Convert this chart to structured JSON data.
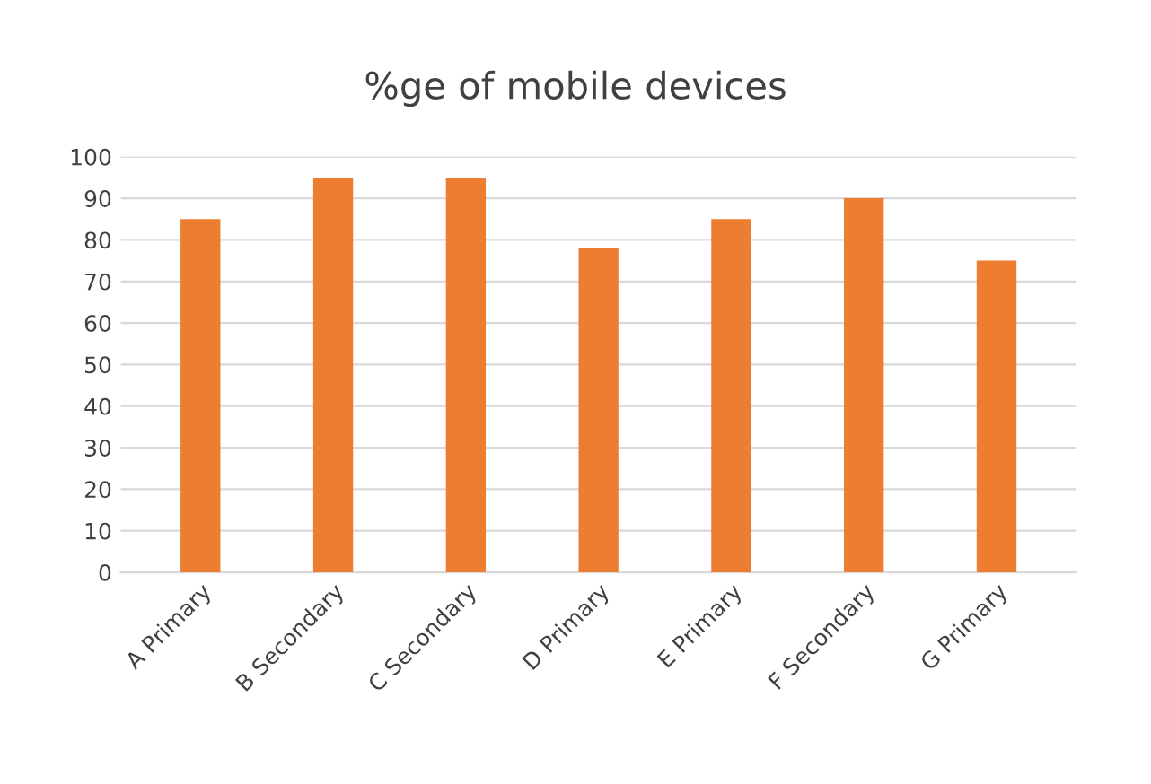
{
  "chart_data": {
    "type": "bar",
    "title": "%ge of mobile devices",
    "categories": [
      "A Primary",
      "B Secondary",
      "C Secondary",
      "D Primary",
      "E Primary",
      "F Secondary",
      "G Primary"
    ],
    "values": [
      85,
      95,
      95,
      78,
      85,
      90,
      75
    ],
    "color": "#ed7d31",
    "ylim": [
      0,
      100
    ],
    "yticks": [
      0,
      10,
      20,
      30,
      40,
      50,
      60,
      70,
      80,
      90,
      100
    ],
    "grid": "y"
  }
}
